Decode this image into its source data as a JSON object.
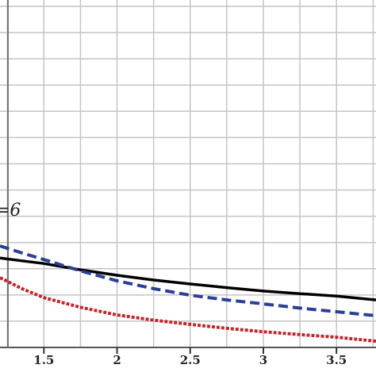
{
  "chart_data": {
    "type": "line",
    "annotation": "=6",
    "x": [
      1.2,
      1.35,
      1.5,
      1.75,
      2,
      2.25,
      2.5,
      2.75,
      3,
      3.25,
      3.5,
      3.77
    ],
    "series": [
      {
        "color": "#000000",
        "dash": "solid",
        "values": [
          3.41,
          3.3,
          3.2,
          2.96,
          2.75,
          2.57,
          2.42,
          2.28,
          2.15,
          2.05,
          1.96,
          1.81
        ]
      },
      {
        "color": "#2b3f94",
        "dash": "dashed",
        "values": [
          3.87,
          3.6,
          3.35,
          2.92,
          2.54,
          2.24,
          1.99,
          1.81,
          1.66,
          1.5,
          1.36,
          1.21
        ]
      },
      {
        "color": "#c0272d",
        "dash": "dotted",
        "values": [
          2.66,
          2.24,
          1.9,
          1.53,
          1.24,
          1.04,
          0.88,
          0.73,
          0.6,
          0.49,
          0.39,
          0.24
        ]
      }
    ],
    "xlim": [
      1.2,
      3.77
    ],
    "ylim": [
      0,
      13
    ],
    "xticks": [
      {
        "value": 1.5,
        "label": "1.5"
      },
      2,
      {
        "value": 2.5,
        "label": "2.5"
      },
      3,
      {
        "value": 3.5,
        "label": "3.5"
      }
    ],
    "xgrid": [
      1.25,
      1.5,
      1.75,
      2,
      2.25,
      2.5,
      2.75,
      3,
      3.25,
      3.5,
      3.75
    ],
    "ygrid": [
      1,
      2,
      3,
      4,
      5,
      6,
      7,
      8,
      9,
      10,
      11,
      12,
      13
    ]
  }
}
